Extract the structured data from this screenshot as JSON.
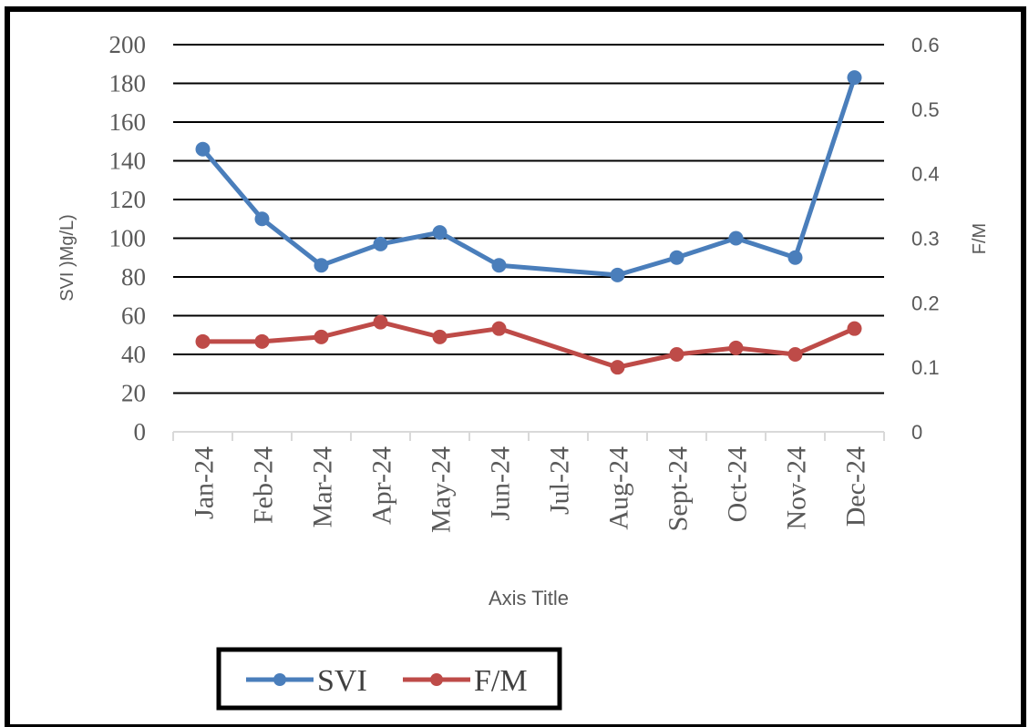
{
  "chart_data": {
    "type": "line",
    "categories": [
      "Jan-24",
      "Feb-24",
      "Mar-24",
      "Apr-24",
      "May-24",
      "Jun-24",
      "Jul-24",
      "Aug-24",
      "Sept-24",
      "Oct-24",
      "Nov-24",
      "Dec-24"
    ],
    "series": [
      {
        "name": "SVI",
        "axis": "left",
        "color": "#4a7ebb",
        "values": [
          146,
          110,
          86,
          97,
          103,
          86,
          null,
          81,
          90,
          100,
          90,
          183
        ]
      },
      {
        "name": "F/M",
        "axis": "right",
        "color": "#be4b48",
        "values": [
          0.14,
          0.14,
          0.147,
          0.17,
          0.147,
          0.16,
          null,
          0.1,
          0.12,
          0.13,
          0.12,
          0.16
        ]
      }
    ],
    "xlabel": "Axis Title",
    "ylabel": "SVI  )Mg/L)",
    "y2label": "F/M",
    "ylim": [
      0,
      200
    ],
    "y2lim": [
      0,
      0.6
    ],
    "yticks": [
      "0",
      "20",
      "40",
      "60",
      "80",
      "100",
      "120",
      "140",
      "160",
      "180",
      "200"
    ],
    "y2ticks": [
      "0",
      "0.1",
      "0.2",
      "0.3",
      "0.4",
      "0.5",
      "0.6"
    ],
    "grid": true,
    "legend_position": "bottom-left",
    "gap_handling": "connect"
  }
}
